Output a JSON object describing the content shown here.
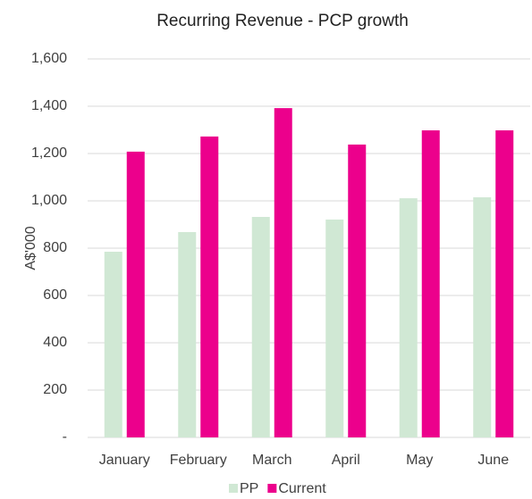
{
  "chart_data": {
    "type": "bar",
    "title": "Recurring Revenue - PCP growth",
    "y_label": "A$'000",
    "categories": [
      "January",
      "February",
      "March",
      "April",
      "May",
      "June"
    ],
    "series": [
      {
        "name": "PP",
        "color": "#d0e8d4",
        "values": [
          785,
          868,
          932,
          921,
          1011,
          1015
        ]
      },
      {
        "name": "Current",
        "color": "#ec008c",
        "values": [
          1208,
          1272,
          1392,
          1238,
          1298,
          1298
        ]
      }
    ],
    "ylim": [
      0,
      1600
    ],
    "yticks": [
      {
        "value": 0,
        "label": "-"
      },
      200,
      400,
      600,
      800,
      {
        "value": 1000,
        "label": "1,000"
      },
      {
        "value": 1200,
        "label": "1,200"
      },
      {
        "value": 1400,
        "label": "1,400"
      },
      {
        "value": 1600,
        "label": "1,600"
      }
    ],
    "grid": true,
    "legend": "bottom"
  }
}
